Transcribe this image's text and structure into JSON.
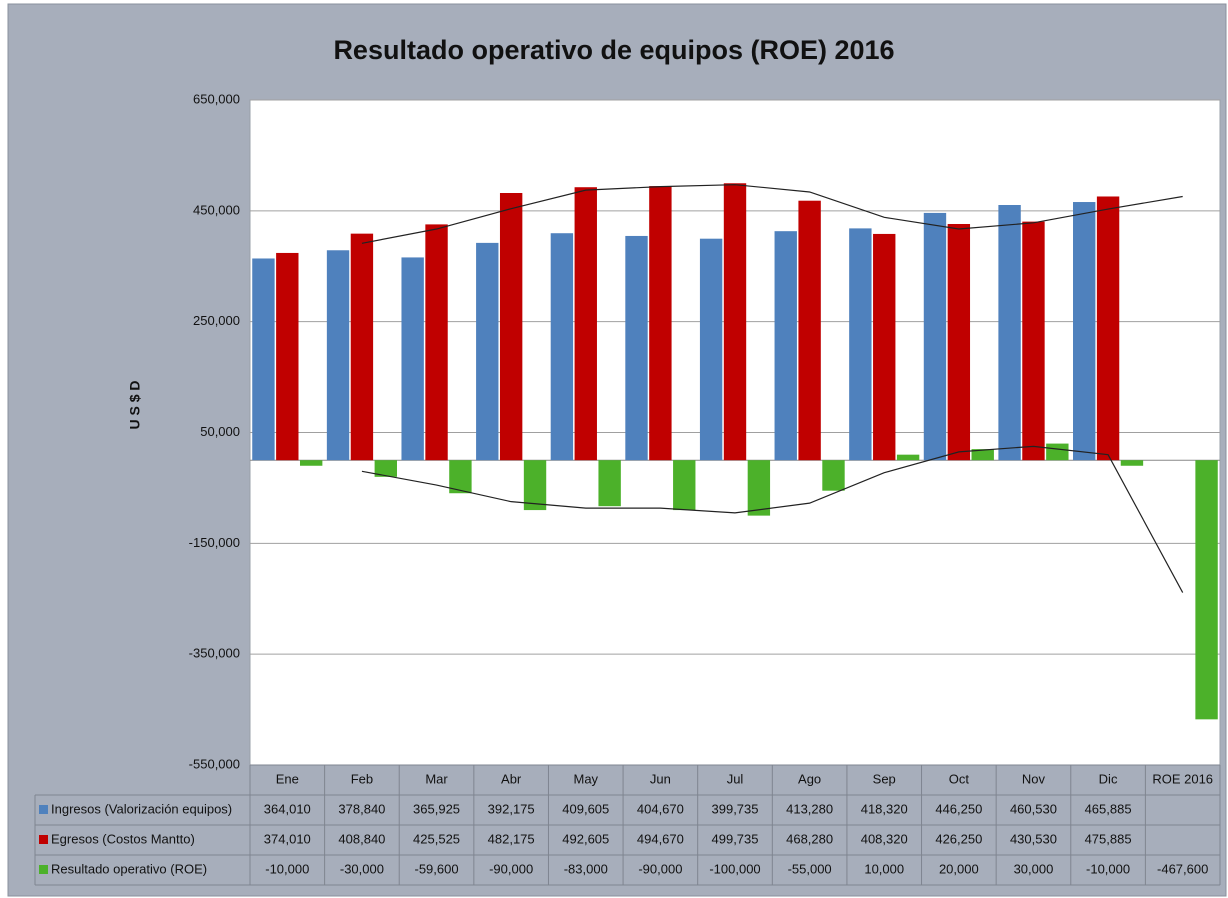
{
  "chart_data": {
    "type": "bar",
    "title": "Resultado operativo de equipos (ROE) 2016",
    "y_label": "U S $ D",
    "categories": [
      "Ene",
      "Feb",
      "Mar",
      "Abr",
      "May",
      "Jun",
      "Jul",
      "Ago",
      "Sep",
      "Oct",
      "Nov",
      "Dic",
      "ROE 2016"
    ],
    "series": [
      {
        "name": "Ingresos (Valorización equipos)",
        "color": "#4f81bd",
        "values": [
          364010,
          378840,
          365925,
          392175,
          409605,
          404670,
          399735,
          413280,
          418320,
          446250,
          460530,
          465885,
          null
        ],
        "value_labels": [
          "364,010",
          "378,840",
          "365,925",
          "392,175",
          "409,605",
          "404,670",
          "399,735",
          "413,280",
          "418,320",
          "446,250",
          "460,530",
          "465,885",
          null
        ]
      },
      {
        "name": "Egresos (Costos Mantto)",
        "color": "#c00000",
        "values": [
          374010,
          408840,
          425525,
          482175,
          492605,
          494670,
          499735,
          468280,
          408320,
          426250,
          430530,
          475885,
          null
        ],
        "value_labels": [
          "374,010",
          "408,840",
          "425,525",
          "482,175",
          "492,605",
          "494,670",
          "499,735",
          "468,280",
          "408,320",
          "426,250",
          "430,530",
          "475,885",
          null
        ],
        "trendline": {
          "type": "moving average",
          "period": 2
        }
      },
      {
        "name": "Resultado operativo (ROE)",
        "color": "#4cb12a",
        "values": [
          -10000,
          -30000,
          -59600,
          -90000,
          -83000,
          -90000,
          -100000,
          -55000,
          10000,
          20000,
          30000,
          -10000,
          -467600
        ],
        "value_labels": [
          "-10,000",
          "-30,000",
          "-59,600",
          "-90,000",
          "-83,000",
          "-90,000",
          "-100,000",
          "-55,000",
          "10,000",
          "20,000",
          "30,000",
          "-10,000",
          "-467,600"
        ],
        "trendline": {
          "type": "moving average",
          "period": 2
        }
      }
    ],
    "ylim": [
      -550000,
      650000
    ],
    "yticks": [
      {
        "value": 650000,
        "label": "650,000"
      },
      {
        "value": 450000,
        "label": "450,000"
      },
      {
        "value": 250000,
        "label": "250,000"
      },
      {
        "value": 50000,
        "label": "50,000"
      },
      {
        "value": -150000,
        "label": "-150,000"
      },
      {
        "value": -350000,
        "label": "-350,000"
      },
      {
        "value": -550000,
        "label": "-550,000"
      }
    ],
    "grid": true,
    "data_table": true
  }
}
